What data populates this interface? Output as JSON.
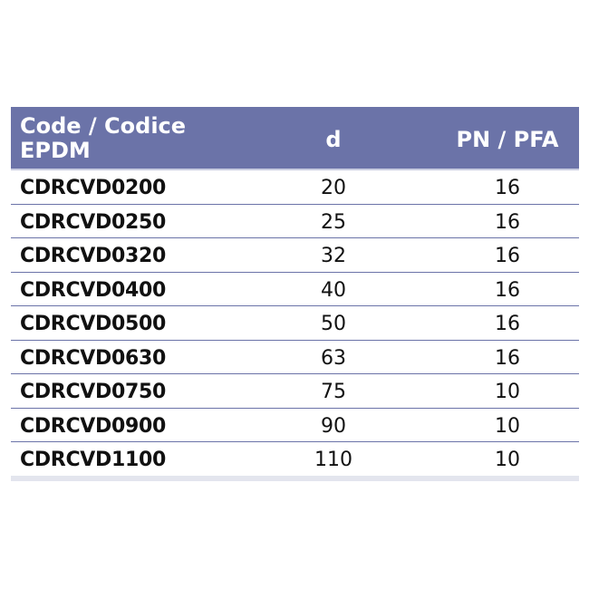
{
  "table": {
    "header": {
      "code_line1": "Code / Codice",
      "code_line2": "EPDM",
      "d": "d",
      "pn_pfa": "PN / PFA"
    },
    "rows": [
      {
        "code": "CDRCVD0200",
        "d": "20",
        "pn": "16"
      },
      {
        "code": "CDRCVD0250",
        "d": "25",
        "pn": "16"
      },
      {
        "code": "CDRCVD0320",
        "d": "32",
        "pn": "16"
      },
      {
        "code": "CDRCVD0400",
        "d": "40",
        "pn": "16"
      },
      {
        "code": "CDRCVD0500",
        "d": "50",
        "pn": "16"
      },
      {
        "code": "CDRCVD0630",
        "d": "63",
        "pn": "16"
      },
      {
        "code": "CDRCVD0750",
        "d": "75",
        "pn": "10"
      },
      {
        "code": "CDRCVD0900",
        "d": "90",
        "pn": "10"
      },
      {
        "code": "CDRCVD1100",
        "d": "110",
        "pn": "10"
      }
    ]
  },
  "colors": {
    "header_bg": "#6b73a8",
    "header_text": "#ffffff",
    "row_divider": "#6b73a8"
  }
}
